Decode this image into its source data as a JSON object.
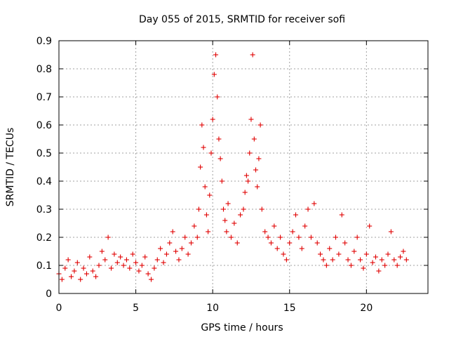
{
  "chart_data": {
    "type": "scatter",
    "title": "Day 055 of 2015, SRMTID for receiver sofi",
    "xlabel": "GPS time / hours",
    "ylabel": "SRMTID / TECUs",
    "xlim": [
      0,
      24
    ],
    "ylim": [
      0,
      0.9
    ],
    "xticks": [
      0,
      5,
      10,
      15,
      20
    ],
    "xtick_labels": [
      "0",
      "5",
      "10",
      "15",
      "20"
    ],
    "yticks": [
      0,
      0.1,
      0.2,
      0.3,
      0.4,
      0.5,
      0.6,
      0.7,
      0.8,
      0.9
    ],
    "ytick_labels": [
      "0",
      "0.1",
      "0.2",
      "0.3",
      "0.4",
      "0.5",
      "0.6",
      "0.7",
      "0.8",
      "0.9"
    ],
    "grid": true,
    "marker": "plus",
    "marker_color": "#e00000",
    "series": [
      {
        "name": "SRMTID",
        "x": [
          0.0,
          0.2,
          0.4,
          0.6,
          0.8,
          1.0,
          1.2,
          1.4,
          1.6,
          1.8,
          2.0,
          2.2,
          2.4,
          2.6,
          2.8,
          3.0,
          3.2,
          3.4,
          3.6,
          3.8,
          4.0,
          4.2,
          4.4,
          4.6,
          4.8,
          5.0,
          5.2,
          5.4,
          5.6,
          5.8,
          6.0,
          6.2,
          6.4,
          6.6,
          6.8,
          7.0,
          7.2,
          7.4,
          7.6,
          7.8,
          8.0,
          8.2,
          8.4,
          8.6,
          8.8,
          9.0,
          9.1,
          9.2,
          9.3,
          9.4,
          9.5,
          9.6,
          9.7,
          9.8,
          9.9,
          10.0,
          10.1,
          10.2,
          10.3,
          10.4,
          10.5,
          10.6,
          10.7,
          10.8,
          10.9,
          11.0,
          11.2,
          11.4,
          11.6,
          11.8,
          12.0,
          12.1,
          12.2,
          12.3,
          12.4,
          12.5,
          12.6,
          12.7,
          12.8,
          12.9,
          13.0,
          13.1,
          13.2,
          13.4,
          13.6,
          13.8,
          14.0,
          14.2,
          14.4,
          14.6,
          14.8,
          15.0,
          15.2,
          15.4,
          15.6,
          15.8,
          16.0,
          16.2,
          16.4,
          16.6,
          16.8,
          17.0,
          17.2,
          17.4,
          17.6,
          17.8,
          18.0,
          18.2,
          18.4,
          18.6,
          18.8,
          19.0,
          19.2,
          19.4,
          19.6,
          19.8,
          20.0,
          20.2,
          20.4,
          20.6,
          20.8,
          21.0,
          21.2,
          21.4,
          21.6,
          21.8,
          22.0,
          22.2,
          22.4,
          22.6
        ],
        "y": [
          0.07,
          0.05,
          0.09,
          0.12,
          0.06,
          0.08,
          0.11,
          0.05,
          0.09,
          0.07,
          0.13,
          0.08,
          0.06,
          0.1,
          0.15,
          0.12,
          0.2,
          0.09,
          0.14,
          0.11,
          0.13,
          0.1,
          0.12,
          0.09,
          0.14,
          0.11,
          0.08,
          0.1,
          0.13,
          0.07,
          0.05,
          0.09,
          0.12,
          0.16,
          0.11,
          0.14,
          0.18,
          0.22,
          0.15,
          0.12,
          0.16,
          0.2,
          0.14,
          0.18,
          0.24,
          0.2,
          0.3,
          0.45,
          0.6,
          0.52,
          0.38,
          0.28,
          0.22,
          0.35,
          0.5,
          0.62,
          0.78,
          0.85,
          0.7,
          0.55,
          0.48,
          0.4,
          0.3,
          0.26,
          0.22,
          0.32,
          0.2,
          0.25,
          0.18,
          0.28,
          0.3,
          0.36,
          0.42,
          0.4,
          0.5,
          0.62,
          0.85,
          0.55,
          0.44,
          0.38,
          0.48,
          0.6,
          0.3,
          0.22,
          0.2,
          0.18,
          0.24,
          0.16,
          0.2,
          0.14,
          0.12,
          0.18,
          0.22,
          0.28,
          0.2,
          0.16,
          0.24,
          0.3,
          0.2,
          0.32,
          0.18,
          0.14,
          0.12,
          0.1,
          0.16,
          0.12,
          0.2,
          0.14,
          0.28,
          0.18,
          0.12,
          0.1,
          0.15,
          0.2,
          0.12,
          0.09,
          0.14,
          0.24,
          0.11,
          0.13,
          0.08,
          0.12,
          0.1,
          0.14,
          0.22,
          0.12,
          0.1,
          0.13,
          0.15,
          0.12
        ]
      }
    ]
  }
}
